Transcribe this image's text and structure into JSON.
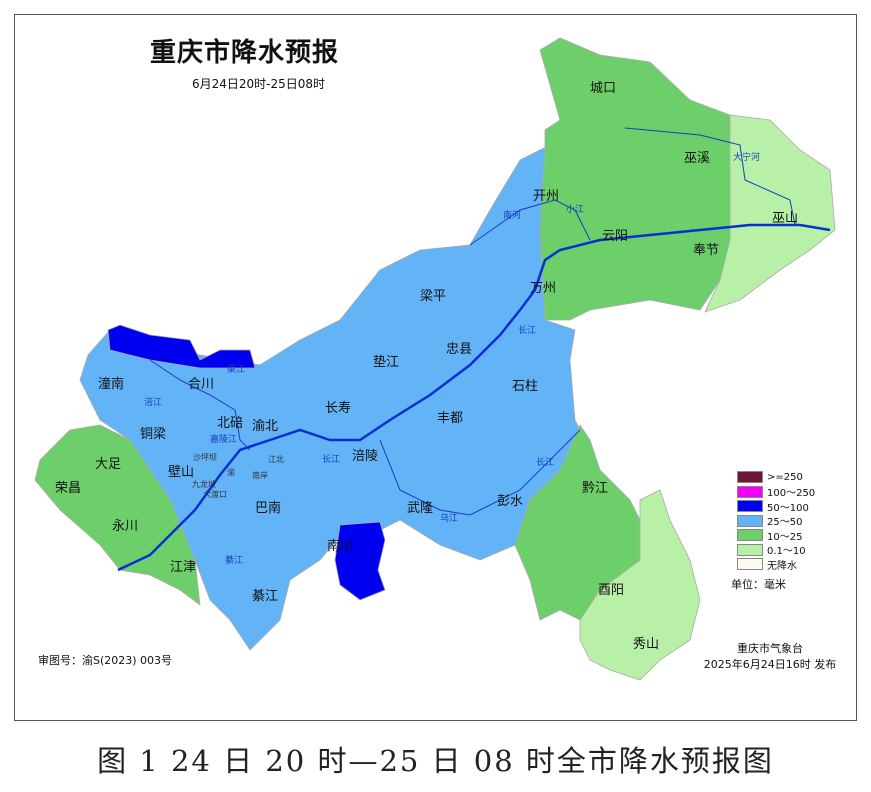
{
  "map": {
    "title": "重庆市降水预报",
    "subtitle": "6月24日20时-25日08时",
    "colors": {
      "ge250": "#6d1639",
      "r100_250": "#f400f4",
      "r50_100": "#0000f0",
      "r25_50": "#62b4f7",
      "r10_25": "#6dcf6a",
      "r01_10": "#b8f0a8",
      "none": "#fffaf0"
    },
    "legend": [
      {
        "label": ">=250",
        "color": "#6d1639"
      },
      {
        "label": "100～250",
        "color": "#f400f4"
      },
      {
        "label": "50～100",
        "color": "#0000f0"
      },
      {
        "label": "25～50",
        "color": "#62b4f7"
      },
      {
        "label": "10～25",
        "color": "#6dcf6a"
      },
      {
        "label": "0.1～10",
        "color": "#b8f0a8"
      },
      {
        "label": "无降水",
        "color": "#fffaf0"
      }
    ],
    "unit": "单位：毫米",
    "districts": [
      "城口",
      "巫溪",
      "开州",
      "云阳",
      "巫山",
      "奉节",
      "万州",
      "梁平",
      "忠县",
      "垫江",
      "石柱",
      "长寿",
      "丰都",
      "潼南",
      "合川",
      "铜梁",
      "北碚",
      "渝北",
      "大足",
      "壁山",
      "荣昌",
      "永川",
      "涪陵",
      "巴南",
      "武隆",
      "彭水",
      "黔江",
      "江津",
      "南川",
      "綦江",
      "酉阳",
      "秀山"
    ],
    "city_districts": [
      "沙坪坝",
      "渝",
      "江北",
      "南岸",
      "九龙坡",
      "大渡口"
    ],
    "rivers": [
      "大宁河",
      "南河",
      "小江",
      "长江",
      "涪江",
      "渠江",
      "嘉陵江",
      "长江",
      "乌江",
      "綦江",
      "长江"
    ],
    "review_number": "审图号：渝S(2023) 003号",
    "issuer": "重庆市气象台",
    "issue_time": "2025年6月24日16时 发布"
  },
  "caption": "图 1  24 日 20 时—25 日 08 时全市降水预报图"
}
